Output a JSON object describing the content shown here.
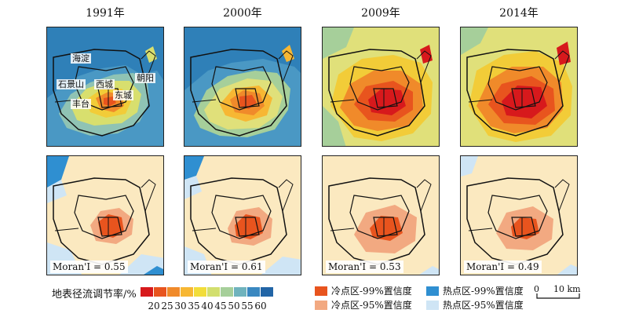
{
  "years": [
    "1991年",
    "2000年",
    "2009年",
    "2014年"
  ],
  "district_labels": [
    "海淀",
    "朝阳",
    "石景山",
    "西城",
    "东城",
    "丰台"
  ],
  "moran": [
    "Moran'I = 0.55",
    "Moran'I = 0.61",
    "Moran'I = 0.53",
    "Moran'I = 0.49"
  ],
  "colour_legend": {
    "title": "地表径流调节率/%",
    "ticks": [
      "20",
      "25",
      "30",
      "35",
      "40",
      "45",
      "50",
      "55",
      "60"
    ],
    "colors": [
      "#d7191c",
      "#e8541e",
      "#f08a2a",
      "#f7b733",
      "#f2dd3a",
      "#d2df6e",
      "#a6cf9a",
      "#6fb3bd",
      "#3a88c0",
      "#2265a6"
    ]
  },
  "cluster_legend": {
    "items": [
      {
        "label": "冷点区-99%置信度",
        "color": "#e8541e"
      },
      {
        "label": "冷点区-95%置信度",
        "color": "#f2a981"
      },
      {
        "label": "热点区-99%置信度",
        "color": "#2f8fd1"
      },
      {
        "label": "热点区-95%置信度",
        "color": "#cfe5f5"
      }
    ],
    "background": "#fbe9c0"
  },
  "scale_bar": {
    "zero": "0",
    "dist": "10 km"
  }
}
